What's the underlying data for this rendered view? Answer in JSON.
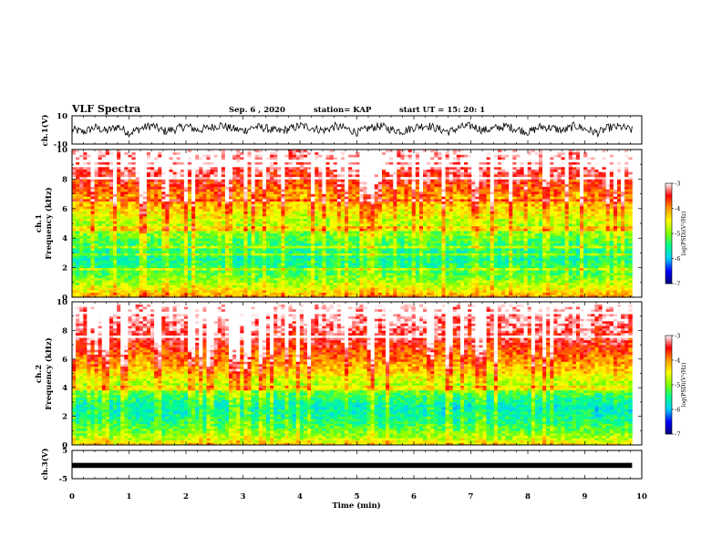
{
  "header": {
    "title": "VLF Spectra",
    "date": "Sep. 6 , 2020",
    "station": "station= KAP",
    "start": "start UT =  15: 20: 1"
  },
  "chart_data": [
    {
      "type": "line",
      "panel": "ch1-waveform",
      "ylabel": "ch.1(V)",
      "ylim": [
        -10,
        10
      ],
      "y_tick_labels": [
        "10",
        "-10"
      ],
      "x_range_min": [
        0,
        9.83
      ],
      "series": [
        {
          "color": "#000000",
          "values": [
            0.2,
            -1.5,
            1.8,
            -0.8,
            2.5,
            -2.2,
            1.0,
            3.2,
            -1.0,
            0.5,
            2.8,
            -0.2,
            1.5,
            3.5,
            0.8,
            -0.5,
            2.2,
            1.2,
            -1.2,
            0.6,
            3.0,
            1.6,
            -0.4,
            2.4,
            0.9,
            -1.8,
            1.3,
            2.7,
            0.1,
            -0.9,
            2.0,
            3.4,
            0.7,
            -1.3,
            1.9,
            2.9,
            -0.3,
            1.1,
            2.6,
            0.4,
            -1.6,
            2.3,
            1.4,
            -0.7,
            3.1,
            0.3,
            -2.0,
            1.7,
            2.1,
            -0.1
          ]
        }
      ]
    },
    {
      "type": "heatmap",
      "panel": "ch1-spectrogram",
      "ylabel": "ch.1\nFrequency (kHz)",
      "ylabel_line1": "ch.1",
      "ylabel_line2": "Frequency (kHz)",
      "ylim": [
        0,
        10
      ],
      "y_ticks": [
        0,
        2,
        4,
        6,
        8,
        10
      ],
      "x_range_min": [
        0,
        9.83
      ],
      "freq_profile_log_psd": [
        -4.1,
        -4.6,
        -5.0,
        -5.3,
        -5.5,
        -5.7,
        -5.6,
        -5.4,
        -5.2,
        -5.0,
        -4.9,
        -4.6,
        -4.4,
        -4.2,
        -4.0,
        -3.8,
        -3.6,
        -3.4,
        -3.3,
        -3.2
      ],
      "colorbar": {
        "label": "log(PSD)(V²/Hz)",
        "min": -7,
        "max": -3,
        "ticks": [
          "-3",
          "-4",
          "-5",
          "-6",
          "-7"
        ]
      }
    },
    {
      "type": "heatmap",
      "panel": "ch2-spectrogram",
      "ylabel": "ch.2\nFrequency (kHz)",
      "ylabel_line1": "ch.2",
      "ylabel_line2": "Frequency (kHz)",
      "ylim": [
        0,
        10
      ],
      "y_ticks": [
        0,
        2,
        4,
        6,
        8,
        10
      ],
      "x_range_min": [
        0,
        9.83
      ],
      "freq_profile_log_psd": [
        -4.4,
        -4.9,
        -5.2,
        -5.5,
        -5.7,
        -5.8,
        -5.6,
        -5.3,
        -5.0,
        -4.7,
        -4.4,
        -4.2,
        -4.0,
        -3.8,
        -3.6,
        -3.5,
        -3.4,
        -3.3,
        -3.2,
        -3.1
      ],
      "colorbar": {
        "label": "log(PSD)(V²/Hz)",
        "min": -7,
        "max": -3,
        "ticks": [
          "-3",
          "-4",
          "-5",
          "-6",
          "-7"
        ]
      }
    },
    {
      "type": "line",
      "panel": "ch3-waveform",
      "ylabel": "ch.3(V)",
      "ylim": [
        -5,
        5
      ],
      "y_tick_labels": [
        "5",
        "-5"
      ],
      "x_range_min": [
        0,
        9.83
      ],
      "band_range_v": [
        -1.2,
        0.6
      ],
      "series": [
        {
          "color": "#000000",
          "values": []
        }
      ]
    }
  ],
  "x_axis": {
    "label": "Time (min)",
    "lim": [
      0,
      10
    ],
    "ticks": [
      "0",
      "1",
      "2",
      "3",
      "4",
      "5",
      "6",
      "7",
      "8",
      "9",
      "10"
    ]
  },
  "colors": {
    "spectral_scale": [
      "#00007f",
      "#0000ff",
      "#00cfff",
      "#00ff90",
      "#7fff00",
      "#ffff00",
      "#ff9a00",
      "#ff0000",
      "#ffffff"
    ]
  }
}
